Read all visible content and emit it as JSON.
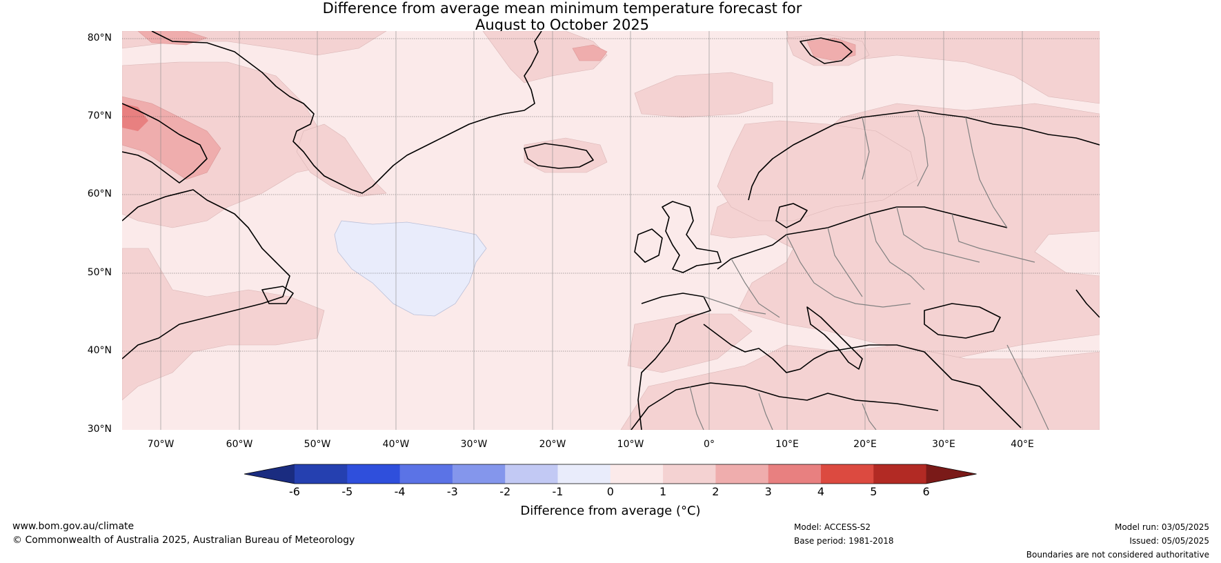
{
  "title": {
    "line1": "Difference from average mean minimum temperature forecast for",
    "line2": "August to October 2025"
  },
  "axes": {
    "lat_labels": [
      "80°N",
      "70°N",
      "60°N",
      "50°N",
      "40°N",
      "30°N"
    ],
    "lon_labels": [
      "70°W",
      "60°W",
      "50°W",
      "40°W",
      "30°W",
      "20°W",
      "10°W",
      "0°",
      "10°E",
      "20°E",
      "30°E",
      "40°E"
    ]
  },
  "colorbar": {
    "ticks": [
      "-6",
      "-5",
      "-4",
      "-3",
      "-2",
      "-1",
      "0",
      "1",
      "2",
      "3",
      "4",
      "5",
      "6"
    ],
    "label": "Difference from average (°C)",
    "colors": [
      "#1a2c80",
      "#2540b0",
      "#2f4fdc",
      "#5b73e6",
      "#8496ec",
      "#c2c9f4",
      "#e9ecfb",
      "#fbeaea",
      "#f4d2d2",
      "#efadad",
      "#e88080",
      "#dc4a40",
      "#b22a24",
      "#7a1a18"
    ]
  },
  "map": {
    "ocean_color": "#fbeaea",
    "coastline_color": "#000000",
    "border_color": "#808080"
  },
  "footer": {
    "website": "www.bom.gov.au/climate",
    "copyright": "© Commonwealth of Australia 2025, Australian Bureau of Meteorology",
    "model": "Model: ACCESS-S2",
    "base_period": "Base period: 1981-2018",
    "model_run": "Model run: 03/05/2025",
    "issued": "Issued: 05/05/2025",
    "disclaimer": "Boundaries are not considered authoritative"
  }
}
